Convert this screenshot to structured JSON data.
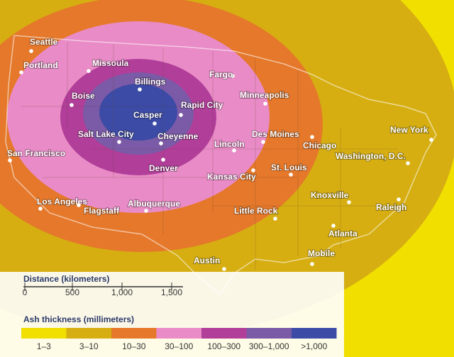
{
  "cities": [
    "Seattle",
    "Portland",
    "Missoula",
    "Billings",
    "Boise",
    "Casper",
    "Rapid City",
    "Fargo",
    "Minneapolis",
    "Salt Lake City",
    "Cheyenne",
    "Denver",
    "Lincoln",
    "Des Moines",
    "Chicago",
    "San Francisco",
    "Kansas City",
    "St. Louis",
    "New York",
    "Washington, D.C.",
    "Knoxville",
    "Raleigh",
    "Los Angeles",
    "Flagstaff",
    "Albuquerque",
    "Little Rock",
    "Atlanta",
    "Mobile",
    "Austin"
  ],
  "scale": {
    "title": "Distance (kilometers)",
    "ticks": [
      "0",
      "500",
      "1,000",
      "1,500"
    ]
  },
  "legend": {
    "title": "Ash thickness (millimeters)",
    "items": [
      {
        "label": "1–3",
        "color": "#f1df00"
      },
      {
        "label": "3–10",
        "color": "#d6ae12"
      },
      {
        "label": "10–30",
        "color": "#e5782a"
      },
      {
        "label": "30–100",
        "color": "#e98bc6"
      },
      {
        "label": "100–300",
        "color": "#b13e99"
      },
      {
        "label": "300–1,000",
        "color": "#7b5aa7"
      },
      {
        "label": ">1,000",
        "color": "#3c4ba6"
      }
    ]
  }
}
